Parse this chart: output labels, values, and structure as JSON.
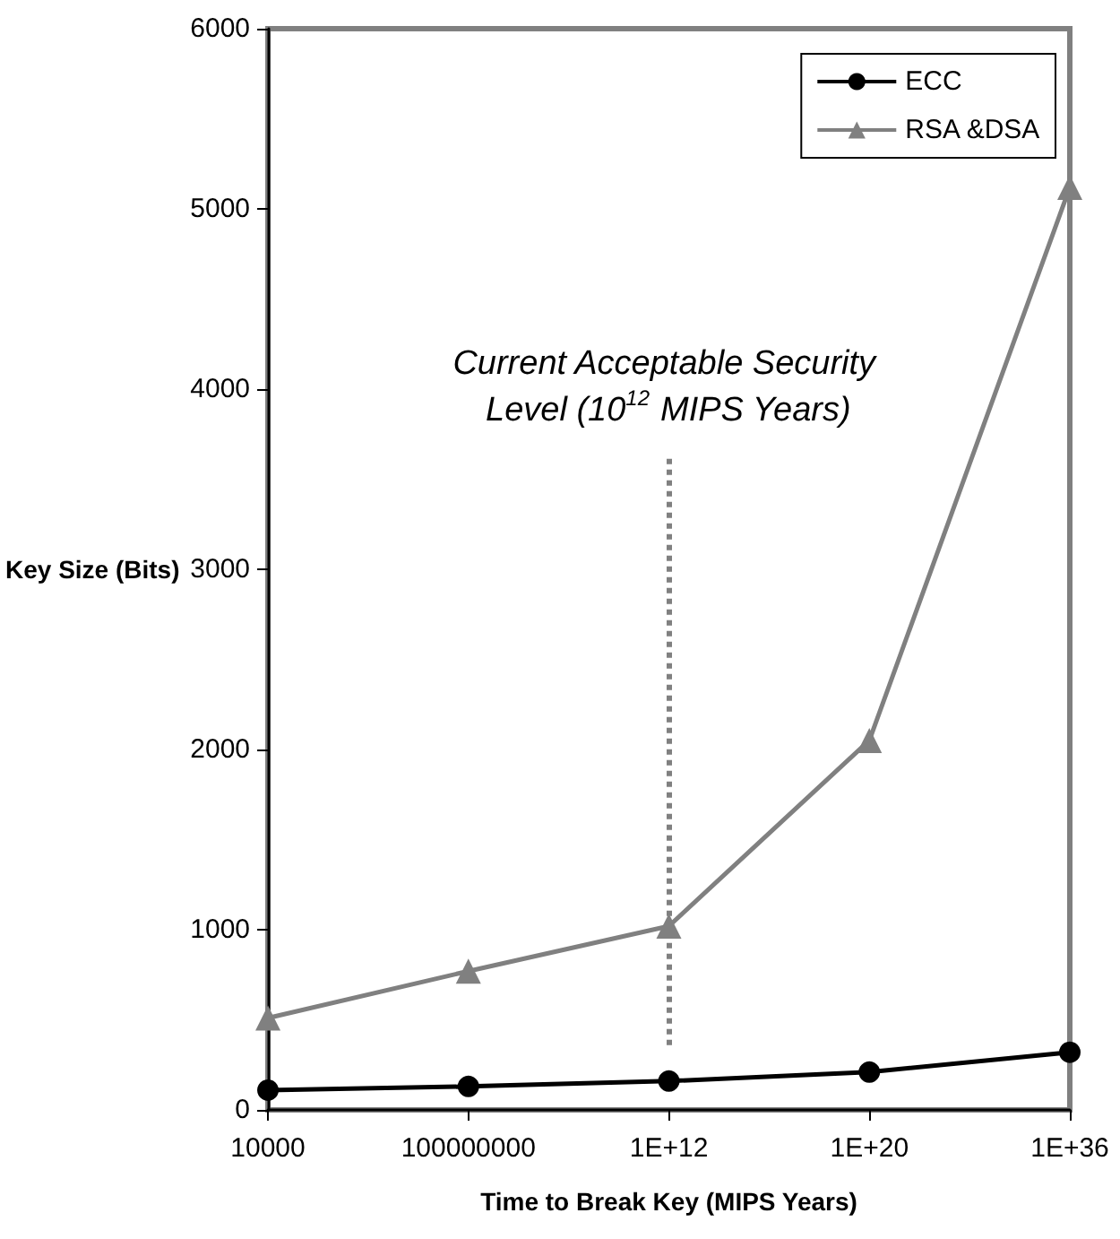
{
  "chart_data": {
    "type": "line",
    "categories": [
      "10000",
      "100000000",
      "1E+12",
      "1E+20",
      "1E+36"
    ],
    "xlabel": "Time to Break Key (MIPS Years)",
    "ylabel": "Key Size (Bits)",
    "ylim": [
      0,
      6000
    ],
    "yticks": [
      0,
      1000,
      2000,
      3000,
      4000,
      5000,
      6000
    ],
    "grid": false,
    "legend": "top right",
    "series": [
      {
        "name": "ECC",
        "color": "#000000",
        "marker": "circle",
        "values": [
          110,
          130,
          160,
          210,
          320
        ]
      },
      {
        "name": "RSA &DSA",
        "color": "#808080",
        "marker": "triangle",
        "values": [
          510,
          770,
          1020,
          2050,
          5120
        ]
      }
    ],
    "ref_lines": [
      {
        "axis": "x",
        "value": "1E+12",
        "label": "Current Acceptable Security Level (10$^{12}$ MIPS Years)",
        "color": "#808080",
        "line_style": "dotted"
      }
    ]
  }
}
